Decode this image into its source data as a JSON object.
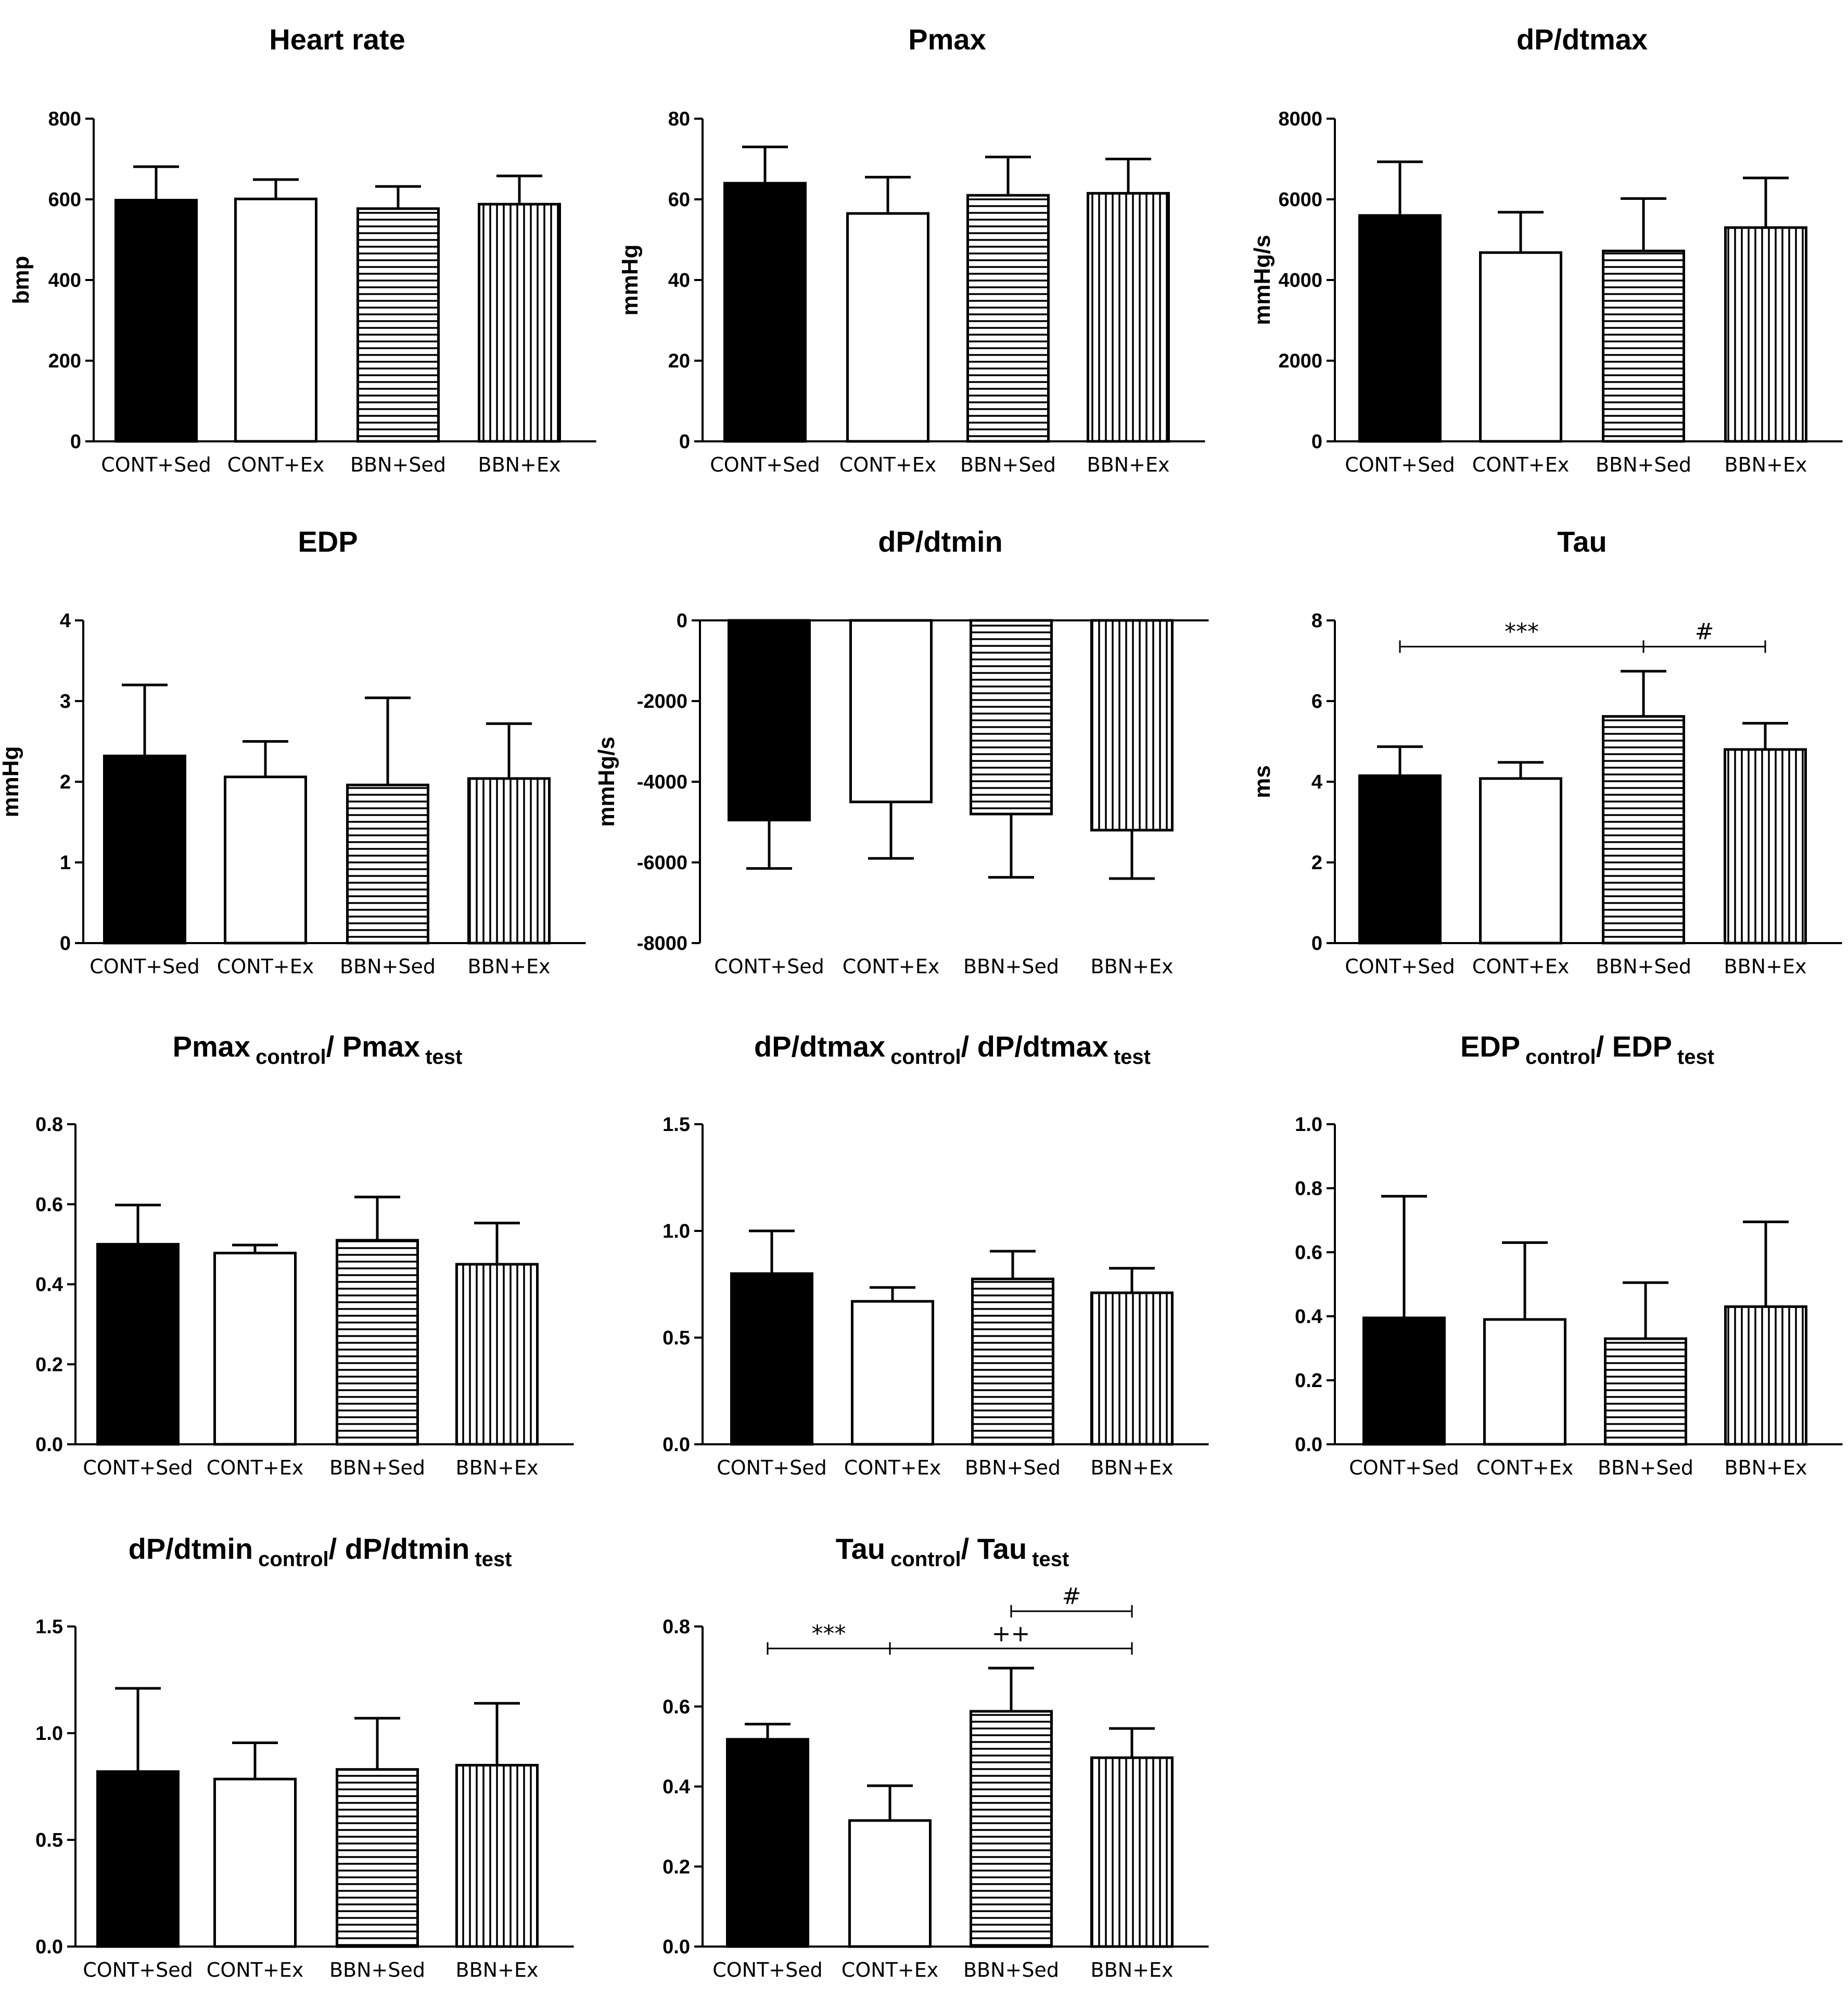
{
  "figure": {
    "fill_colors": {
      "solid": "#000000",
      "open": "#ffffff",
      "stroke": "#000000"
    },
    "fill_styles": [
      "solid",
      "open",
      "hlines",
      "vlines"
    ]
  },
  "chart_data": [
    {
      "id": "hr",
      "type": "bar",
      "title": "Heart rate",
      "ylabel": "bmp",
      "ylim": [
        0,
        800
      ],
      "yticks": [
        "0",
        "200",
        "400",
        "600",
        "800"
      ],
      "categories": [
        "CONT+Sed",
        "CONT+Ex",
        "BBN+Sed",
        "BBN+Ex"
      ],
      "values": [
        598,
        601,
        577,
        588
      ],
      "errors": [
        83,
        48,
        55,
        70
      ]
    },
    {
      "id": "pmax",
      "type": "bar",
      "title": "Pmax",
      "ylabel": "mmHg",
      "ylim": [
        0,
        80
      ],
      "yticks": [
        "0",
        "20",
        "40",
        "60",
        "80"
      ],
      "categories": [
        "CONT+Sed",
        "CONT+Ex",
        "BBN+Sed",
        "BBN+Ex"
      ],
      "values": [
        64,
        56.5,
        61,
        61.5
      ],
      "errors": [
        9,
        9,
        9.5,
        8.5
      ]
    },
    {
      "id": "dpmax",
      "type": "bar",
      "title": "dP/dtmax",
      "ylabel": "mmHg/s",
      "ylim": [
        0,
        8000
      ],
      "yticks": [
        "0",
        "2000",
        "4000",
        "6000",
        "8000"
      ],
      "categories": [
        "CONT+Sed",
        "CONT+Ex",
        "BBN+Sed",
        "BBN+Ex"
      ],
      "values": [
        5600,
        4680,
        4720,
        5300
      ],
      "errors": [
        1330,
        1000,
        1300,
        1230
      ]
    },
    {
      "id": "edp",
      "type": "bar",
      "title": "EDP",
      "ylabel": "mmHg",
      "ylim": [
        0,
        4
      ],
      "yticks": [
        "0",
        "1",
        "2",
        "3",
        "4"
      ],
      "categories": [
        "CONT+Sed",
        "CONT+Ex",
        "BBN+Sed",
        "BBN+Ex"
      ],
      "values": [
        2.32,
        2.06,
        1.96,
        2.04
      ],
      "errors": [
        0.88,
        0.44,
        1.08,
        0.68
      ]
    },
    {
      "id": "dpmin",
      "type": "bar",
      "title": "dP/dtmin",
      "ylabel": "mmHg/s",
      "ylim": [
        -8000,
        0
      ],
      "yticks": [
        "-8000",
        "-6000",
        "-4000",
        "-2000",
        "0"
      ],
      "categories": [
        "CONT+Sed",
        "CONT+Ex",
        "BBN+Sed",
        "BBN+Ex"
      ],
      "values": [
        -4950,
        -4500,
        -4800,
        -5200
      ],
      "errors": [
        1200,
        1400,
        1570,
        1200
      ]
    },
    {
      "id": "tau",
      "type": "bar",
      "title": "Tau",
      "ylabel": "ms",
      "ylim": [
        0,
        8
      ],
      "yticks": [
        "0",
        "2",
        "4",
        "6",
        "8"
      ],
      "categories": [
        "CONT+Sed",
        "CONT+Ex",
        "BBN+Sed",
        "BBN+Ex"
      ],
      "values": [
        4.15,
        4.08,
        5.62,
        4.8
      ],
      "errors": [
        0.72,
        0.4,
        1.12,
        0.65
      ],
      "annotations": [
        {
          "from": 0,
          "to": 2,
          "y": 7.35,
          "label": "***"
        },
        {
          "from": 2,
          "to": 3,
          "y": 7.35,
          "label": "#"
        }
      ]
    },
    {
      "id": "pmaxr",
      "type": "bar",
      "title": "Pmax",
      "title_sub1": "control",
      "title_mid": "/ Pmax",
      "title_sub2": "test",
      "ylabel": "",
      "ylim": [
        0,
        0.8
      ],
      "yticks": [
        "0.0",
        "0.2",
        "0.4",
        "0.6",
        "0.8"
      ],
      "categories": [
        "CONT+Sed",
        "CONT+Ex",
        "BBN+Sed",
        "BBN+Ex"
      ],
      "values": [
        0.5,
        0.478,
        0.51,
        0.45
      ],
      "errors": [
        0.098,
        0.02,
        0.108,
        0.103
      ]
    },
    {
      "id": "dpmaxr",
      "type": "bar",
      "title": "dP/dtmax",
      "title_sub1": "control",
      "title_mid": "/ dP/dtmax",
      "title_sub2": "test",
      "ylabel": "",
      "ylim": [
        0,
        1.5
      ],
      "yticks": [
        "0.0",
        "0.5",
        "1.0",
        "1.5"
      ],
      "categories": [
        "CONT+Sed",
        "CONT+Ex",
        "BBN+Sed",
        "BBN+Ex"
      ],
      "values": [
        0.8,
        0.67,
        0.775,
        0.71
      ],
      "errors": [
        0.2,
        0.065,
        0.13,
        0.115
      ]
    },
    {
      "id": "edpr",
      "type": "bar",
      "title": "EDP",
      "title_sub1": "control",
      "title_mid": "/ EDP",
      "title_sub2": "test",
      "ylabel": "",
      "ylim": [
        0,
        1.0
      ],
      "yticks": [
        "0.0",
        "0.2",
        "0.4",
        "0.6",
        "0.8",
        "1.0"
      ],
      "categories": [
        "CONT+Sed",
        "CONT+Ex",
        "BBN+Sed",
        "BBN+Ex"
      ],
      "values": [
        0.395,
        0.39,
        0.33,
        0.43
      ],
      "errors": [
        0.38,
        0.24,
        0.175,
        0.265
      ]
    },
    {
      "id": "dpminr",
      "type": "bar",
      "title": "dP/dtmin",
      "title_sub1": "control",
      "title_mid": "/ dP/dtmin",
      "title_sub2": "test",
      "ylabel": "",
      "ylim": [
        0,
        1.5
      ],
      "yticks": [
        "0.0",
        "0.5",
        "1.0",
        "1.5"
      ],
      "categories": [
        "CONT+Sed",
        "CONT+Ex",
        "BBN+Sed",
        "BBN+Ex"
      ],
      "values": [
        0.82,
        0.785,
        0.83,
        0.85
      ],
      "errors": [
        0.39,
        0.17,
        0.24,
        0.29
      ]
    },
    {
      "id": "taur",
      "type": "bar",
      "title": "Tau",
      "title_sub1": "control",
      "title_mid": "/ Tau",
      "title_sub2": "test",
      "ylabel": "",
      "ylim": [
        0,
        0.8
      ],
      "yticks": [
        "0.0",
        "0.2",
        "0.4",
        "0.6",
        "0.8"
      ],
      "categories": [
        "CONT+Sed",
        "CONT+Ex",
        "BBN+Sed",
        "BBN+Ex"
      ],
      "values": [
        0.518,
        0.315,
        0.588,
        0.472
      ],
      "errors": [
        0.038,
        0.087,
        0.108,
        0.073
      ],
      "annotations": [
        {
          "from": 0,
          "to": 1,
          "y": 0.745,
          "label": "***"
        },
        {
          "from": 1,
          "to": 3,
          "y": 0.745,
          "label": "++"
        },
        {
          "from": 2,
          "to": 3,
          "y": 0.838,
          "label": "#"
        }
      ]
    }
  ]
}
